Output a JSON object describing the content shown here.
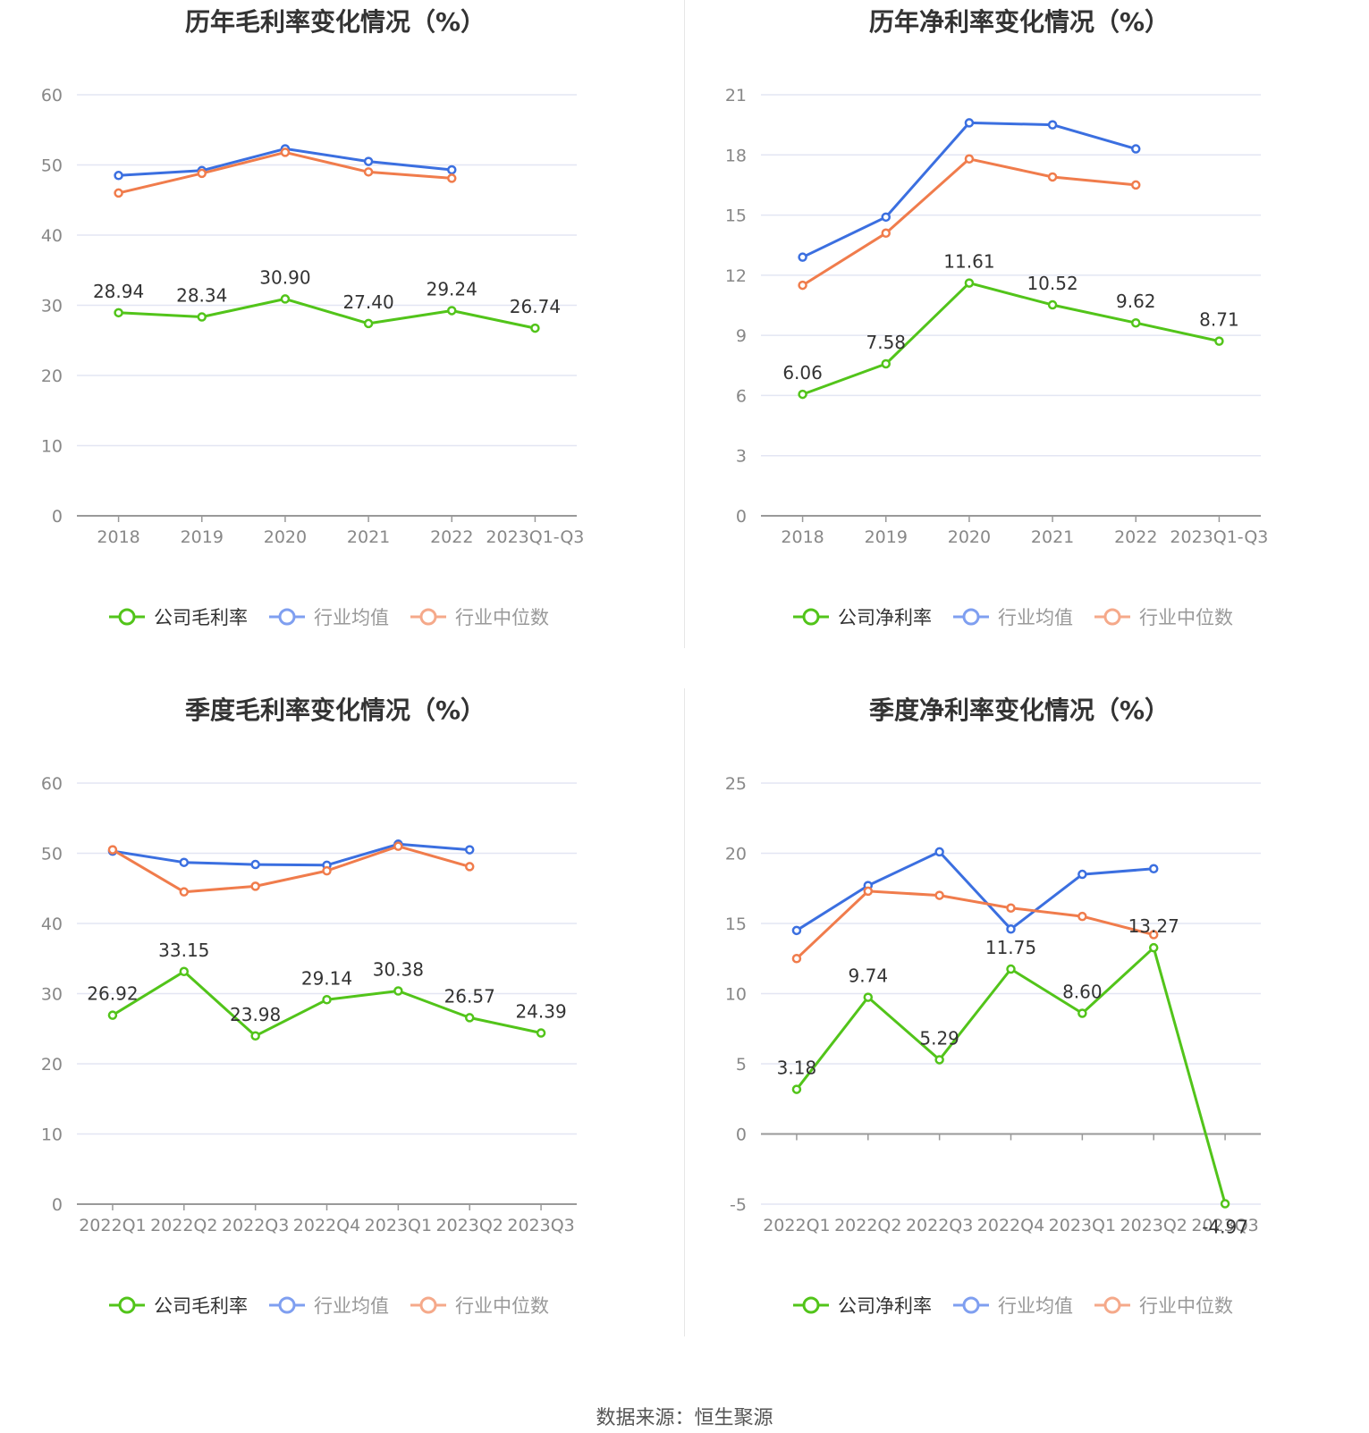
{
  "source_label": "数据来源：恒生聚源",
  "colors": {
    "company": "#52c41a",
    "industry_avg": "#3b6fe0",
    "industry_median": "#f07c4c",
    "legend_avg": "#7f9ff0",
    "legend_median": "#f5a98a",
    "grid": "#e3e6f3",
    "axis": "#999999"
  },
  "chart_data": [
    {
      "type": "line",
      "title": "历年毛利率变化情况（%）",
      "categories": [
        "2018",
        "2019",
        "2020",
        "2021",
        "2022",
        "2023Q1-Q3"
      ],
      "ylim": [
        0,
        60
      ],
      "yticks": [
        0,
        10,
        20,
        30,
        40,
        50,
        60
      ],
      "series": [
        {
          "name": "公司毛利率",
          "role": "company",
          "values": [
            28.94,
            28.34,
            30.9,
            27.4,
            29.24,
            26.74
          ],
          "labels": [
            "28.94",
            "28.34",
            "30.90",
            "27.40",
            "29.24",
            "26.74"
          ]
        },
        {
          "name": "行业均值",
          "role": "industry_avg",
          "values": [
            48.5,
            49.2,
            52.3,
            50.5,
            49.3,
            null
          ]
        },
        {
          "name": "行业中位数",
          "role": "industry_median",
          "values": [
            46.0,
            48.8,
            51.8,
            49.0,
            48.1,
            null
          ]
        }
      ]
    },
    {
      "type": "line",
      "title": "历年净利率变化情况（%）",
      "categories": [
        "2018",
        "2019",
        "2020",
        "2021",
        "2022",
        "2023Q1-Q3"
      ],
      "ylim": [
        0,
        21
      ],
      "yticks": [
        0,
        3,
        6,
        9,
        12,
        15,
        18,
        21
      ],
      "series": [
        {
          "name": "公司净利率",
          "role": "company",
          "values": [
            6.06,
            7.58,
            11.61,
            10.52,
            9.62,
            8.71
          ],
          "labels": [
            "6.06",
            "7.58",
            "11.61",
            "10.52",
            "9.62",
            "8.71"
          ]
        },
        {
          "name": "行业均值",
          "role": "industry_avg",
          "values": [
            12.9,
            14.9,
            19.6,
            19.5,
            18.3,
            null
          ]
        },
        {
          "name": "行业中位数",
          "role": "industry_median",
          "values": [
            11.5,
            14.1,
            17.8,
            16.9,
            16.5,
            null
          ]
        }
      ]
    },
    {
      "type": "line",
      "title": "季度毛利率变化情况（%）",
      "categories": [
        "2022Q1",
        "2022Q2",
        "2022Q3",
        "2022Q4",
        "2023Q1",
        "2023Q2",
        "2023Q3"
      ],
      "ylim": [
        0,
        60
      ],
      "yticks": [
        0,
        10,
        20,
        30,
        40,
        50,
        60
      ],
      "series": [
        {
          "name": "公司毛利率",
          "role": "company",
          "values": [
            26.92,
            33.15,
            23.98,
            29.14,
            30.38,
            26.57,
            24.39
          ],
          "labels": [
            "26.92",
            "33.15",
            "23.98",
            "29.14",
            "30.38",
            "26.57",
            "24.39"
          ]
        },
        {
          "name": "行业均值",
          "role": "industry_avg",
          "values": [
            50.3,
            48.7,
            48.4,
            48.3,
            51.3,
            50.5,
            null
          ]
        },
        {
          "name": "行业中位数",
          "role": "industry_median",
          "values": [
            50.5,
            44.5,
            45.3,
            47.5,
            51.0,
            48.1,
            null
          ]
        }
      ]
    },
    {
      "type": "line",
      "title": "季度净利率变化情况（%）",
      "categories": [
        "2022Q1",
        "2022Q2",
        "2022Q3",
        "2022Q4",
        "2023Q1",
        "2023Q2",
        "2023Q3"
      ],
      "ylim": [
        -5,
        25
      ],
      "yticks": [
        -5,
        0,
        5,
        10,
        15,
        20,
        25
      ],
      "series": [
        {
          "name": "公司净利率",
          "role": "company",
          "values": [
            3.18,
            9.74,
            5.29,
            11.75,
            8.6,
            13.27,
            -4.97
          ],
          "labels": [
            "3.18",
            "9.74",
            "5.29",
            "11.75",
            "8.60",
            "13.27",
            "-4.97"
          ]
        },
        {
          "name": "行业均值",
          "role": "industry_avg",
          "values": [
            14.5,
            17.7,
            20.1,
            14.6,
            18.5,
            18.9,
            null
          ]
        },
        {
          "name": "行业中位数",
          "role": "industry_median",
          "values": [
            12.5,
            17.3,
            17.0,
            16.1,
            15.5,
            14.2,
            null
          ]
        }
      ]
    }
  ]
}
